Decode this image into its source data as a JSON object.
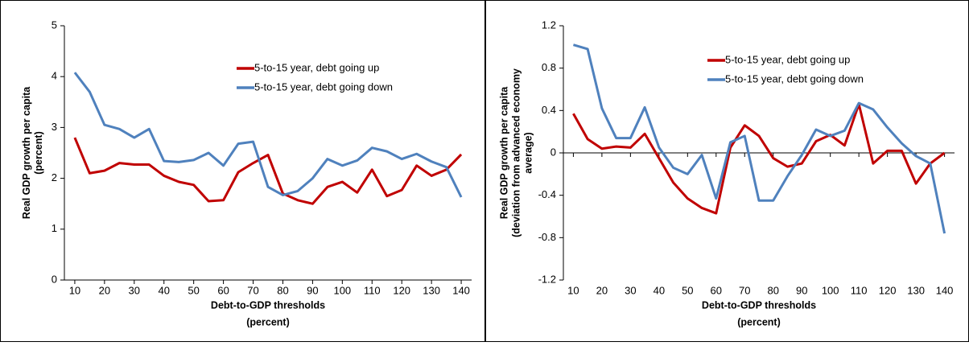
{
  "chart_data": [
    {
      "type": "line",
      "ylabel": [
        "Real GDP growth per capita",
        "(percent)"
      ],
      "xlabel": [
        "Debt-to-GDP thresholds",
        "(percent)"
      ],
      "x": [
        10,
        15,
        20,
        25,
        30,
        35,
        40,
        45,
        50,
        55,
        60,
        65,
        70,
        75,
        80,
        85,
        90,
        95,
        100,
        105,
        110,
        115,
        120,
        125,
        130,
        135,
        140
      ],
      "xlim": [
        6.5,
        143.5
      ],
      "xticks": [
        10,
        20,
        30,
        40,
        50,
        60,
        70,
        80,
        90,
        100,
        110,
        120,
        130,
        140
      ],
      "ylim": [
        0,
        5
      ],
      "yticks": [
        0,
        1,
        2,
        3,
        4,
        5
      ],
      "series": [
        {
          "name": "5-to-15 year, debt going up",
          "color": "#c00000",
          "values": [
            2.8,
            2.1,
            2.15,
            2.3,
            2.27,
            2.27,
            2.05,
            1.93,
            1.87,
            1.55,
            1.57,
            2.12,
            2.3,
            2.46,
            1.7,
            1.57,
            1.5,
            1.83,
            1.93,
            1.72,
            2.17,
            1.65,
            1.77,
            2.25,
            2.05,
            2.17,
            2.47
          ]
        },
        {
          "name": "5-to-15 year, debt going down",
          "color": "#4f81bd",
          "values": [
            4.08,
            3.7,
            3.05,
            2.97,
            2.8,
            2.97,
            2.34,
            2.32,
            2.36,
            2.5,
            2.25,
            2.68,
            2.72,
            1.83,
            1.67,
            1.75,
            2.0,
            2.38,
            2.25,
            2.35,
            2.6,
            2.53,
            2.38,
            2.48,
            2.33,
            2.22,
            1.63
          ]
        }
      ]
    },
    {
      "type": "line",
      "ylabel": [
        "Real GDP growth per capita",
        "(deviation from advanced  economy",
        "average)"
      ],
      "xlabel": [
        "Debt-to-GDP thresholds",
        "(percent)"
      ],
      "x": [
        10,
        15,
        20,
        25,
        30,
        35,
        40,
        45,
        50,
        55,
        60,
        65,
        70,
        75,
        80,
        85,
        90,
        95,
        100,
        105,
        110,
        115,
        120,
        125,
        130,
        135,
        140
      ],
      "xlim": [
        6.5,
        143.5
      ],
      "xticks": [
        10,
        20,
        30,
        40,
        50,
        60,
        70,
        80,
        90,
        100,
        110,
        120,
        130,
        140
      ],
      "ylim": [
        -1.2,
        1.2
      ],
      "yticks": [
        -1.2,
        -0.8,
        -0.4,
        0,
        0.4,
        0.8,
        1.2
      ],
      "series": [
        {
          "name": "5-to-15 year, debt going up",
          "color": "#c00000",
          "values": [
            0.37,
            0.13,
            0.04,
            0.06,
            0.05,
            0.18,
            -0.05,
            -0.28,
            -0.43,
            -0.52,
            -0.57,
            0.05,
            0.26,
            0.16,
            -0.05,
            -0.13,
            -0.1,
            0.11,
            0.17,
            0.07,
            0.46,
            -0.1,
            0.02,
            0.02,
            -0.29,
            -0.1,
            0.0
          ]
        },
        {
          "name": "5-to-15 year, debt going down",
          "color": "#4f81bd",
          "values": [
            1.02,
            0.98,
            0.42,
            0.14,
            0.14,
            0.43,
            0.05,
            -0.14,
            -0.2,
            -0.02,
            -0.43,
            0.1,
            0.16,
            -0.45,
            -0.45,
            -0.22,
            -0.02,
            0.22,
            0.16,
            0.21,
            0.47,
            0.41,
            0.24,
            0.09,
            -0.03,
            -0.1,
            -0.76
          ]
        }
      ]
    }
  ]
}
